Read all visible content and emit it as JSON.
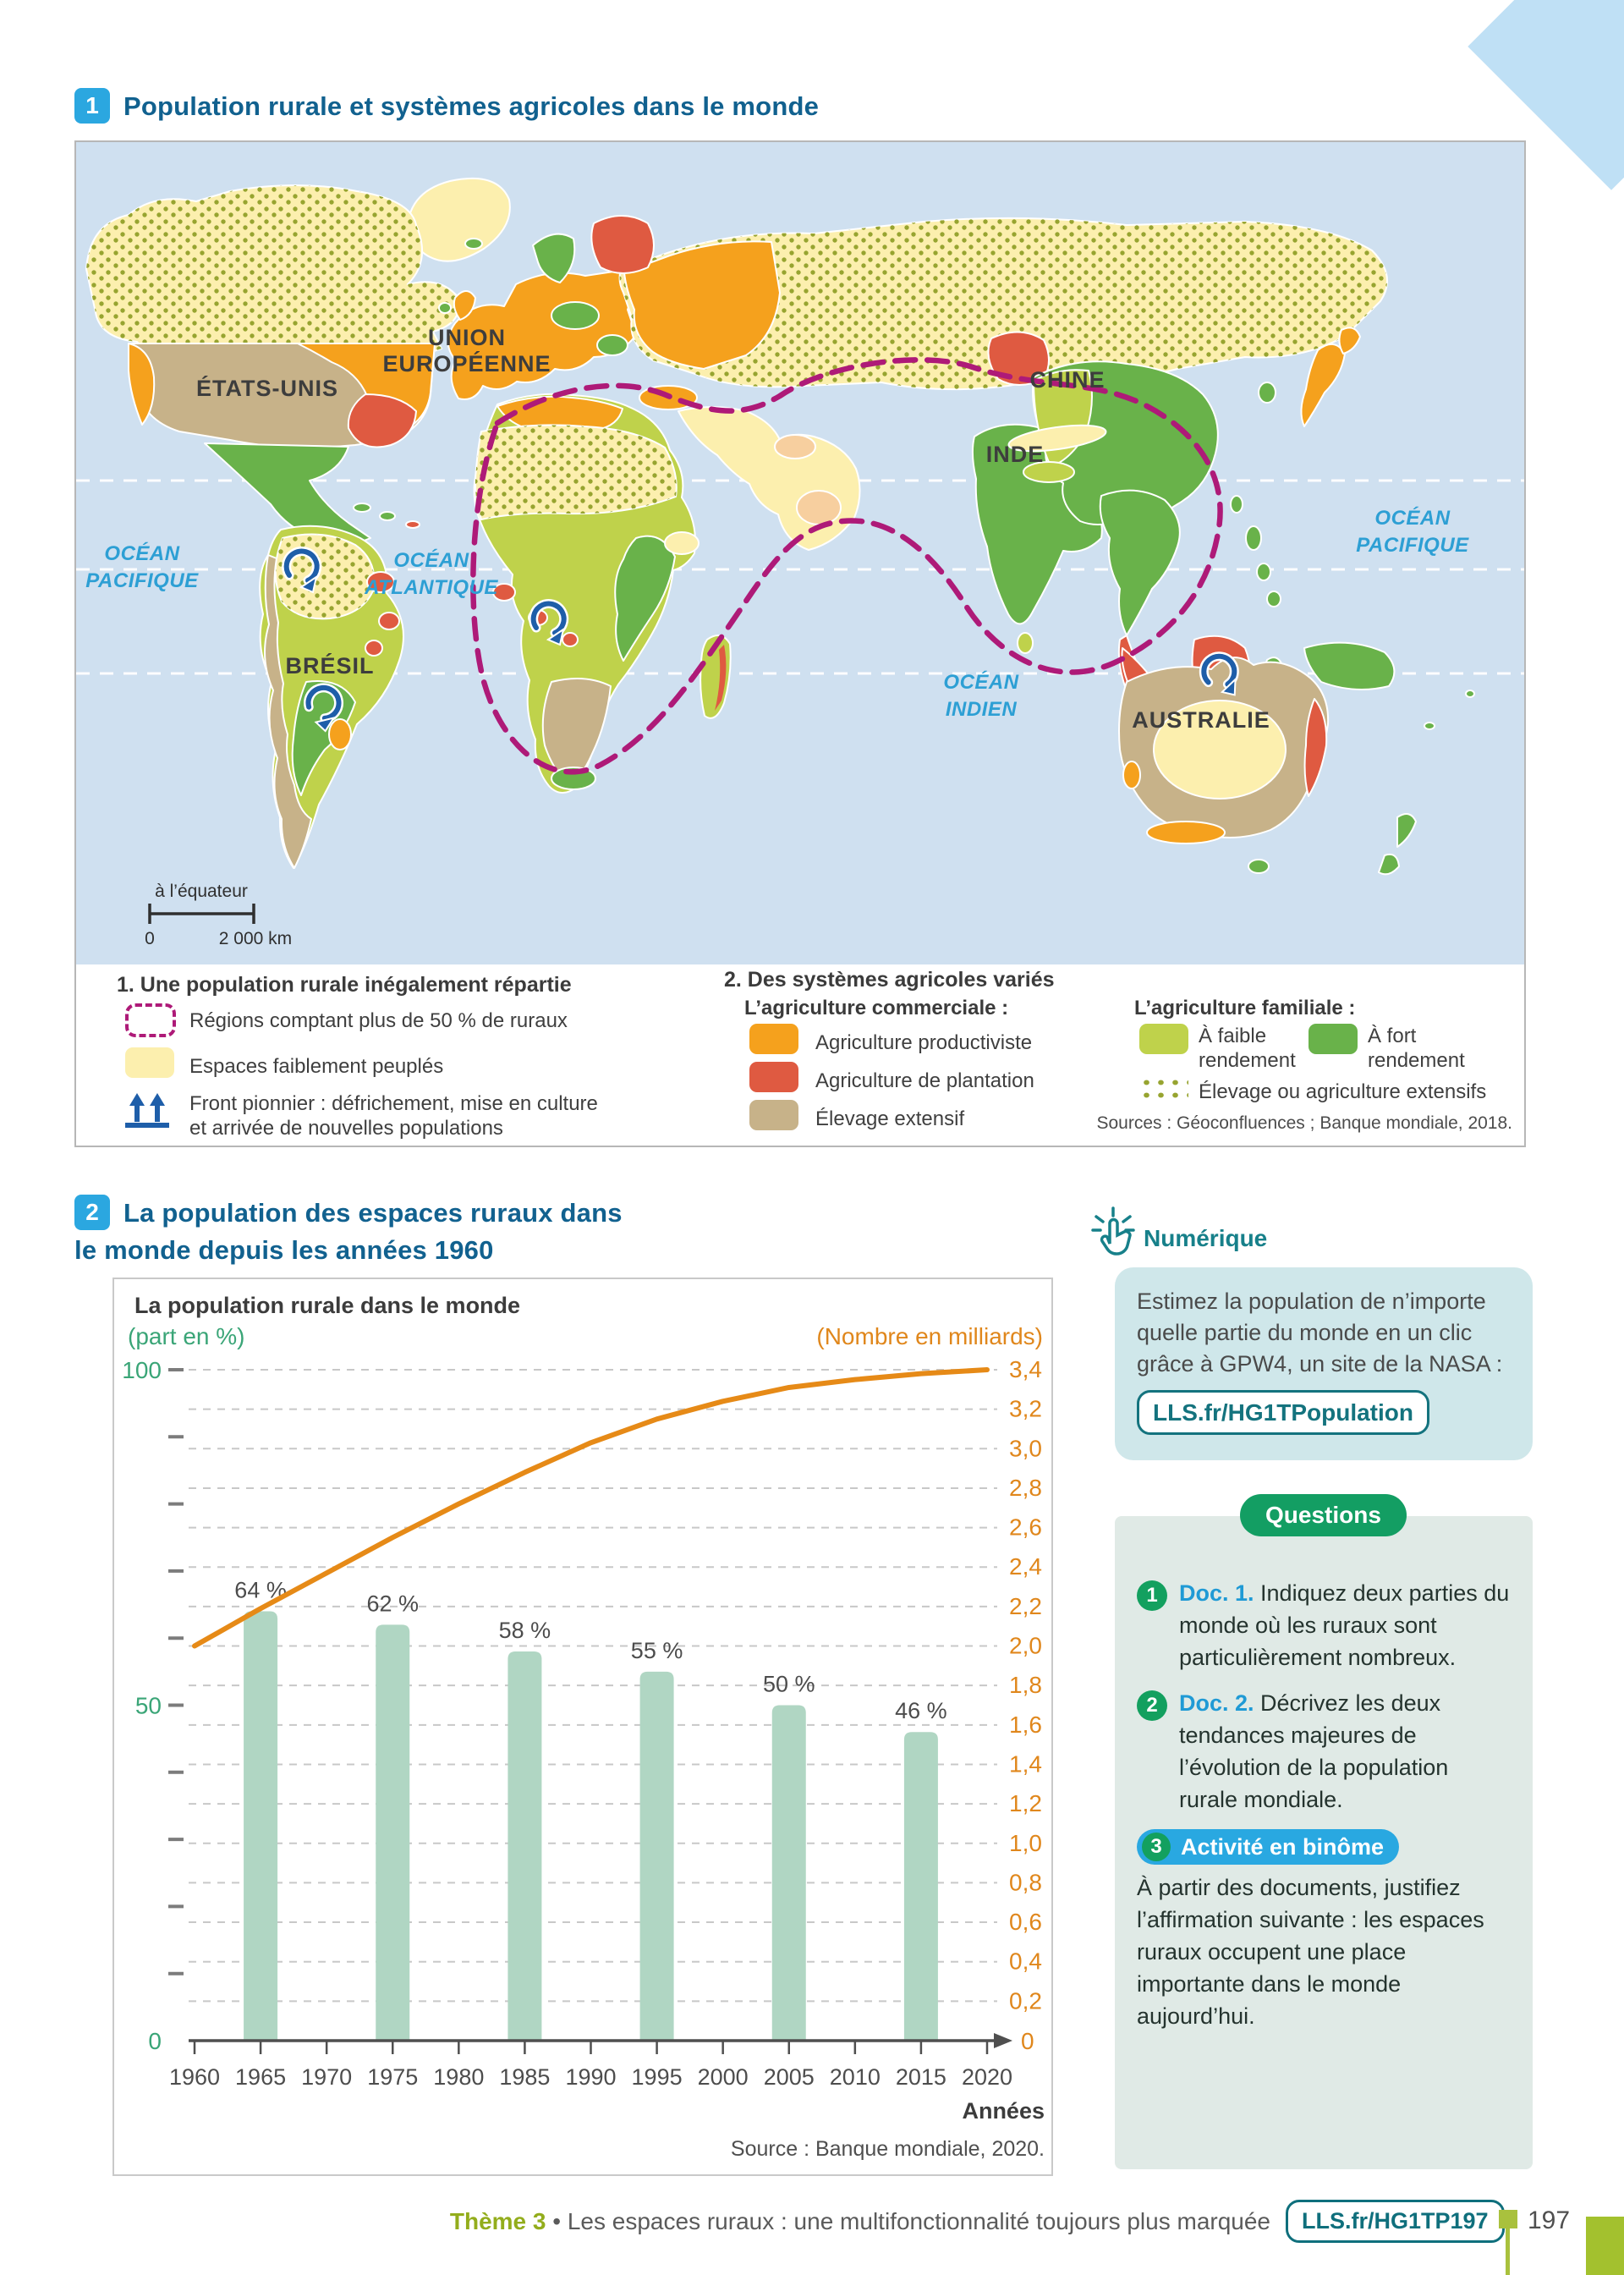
{
  "doc1": {
    "badge": "1",
    "title": "Population rurale et systèmes agricoles dans le monde",
    "map": {
      "labels": {
        "usa": "ÉTATS-UNIS",
        "ue1": "UNION",
        "ue2": "EUROPÉENNE",
        "chine": "CHINE",
        "inde": "INDE",
        "bresil": "BRÉSIL",
        "australie": "AUSTRALIE",
        "ocean": "OCÉAN",
        "atlantique": "ATLANTIQUE",
        "pacifique": "PACIFIQUE",
        "indien": "INDIEN"
      },
      "scale": {
        "caption": "à l’équateur",
        "start": "0",
        "end": "2 000 km"
      }
    },
    "legend": {
      "col1": {
        "title": "1. Une population rurale inégalement répartie",
        "item1": "Régions comptant plus de 50 % de ruraux",
        "item2": "Espaces faiblement peuplés",
        "item3a": "Front pionnier : défrichement, mise en culture",
        "item3b": "et arrivée de nouvelles populations"
      },
      "col2": {
        "title": "2. Des systèmes agricoles variés",
        "subtitle": "L’agriculture commerciale :",
        "item1": "Agriculture productiviste",
        "item2": "Agriculture de plantation",
        "item3": "Élevage extensif"
      },
      "col3": {
        "subtitle": "L’agriculture familiale :",
        "item1a": "À faible",
        "item1b": "rendement",
        "item2a": "À fort",
        "item2b": "rendement",
        "item3": "Élevage ou agriculture extensifs",
        "sources": "Sources : Géoconfluences ; Banque mondiale, 2018."
      },
      "colors": {
        "regions_50_ruraux_outline": "#ae1a78",
        "espaces_faiblement_peuples": "#fcefae",
        "agriculture_productiviste": "#f5a11d",
        "agriculture_plantation": "#df5a41",
        "elevage_extensif": "#c7b289",
        "faible_rendement": "#bfd24b",
        "fort_rendement": "#69b24a",
        "front_pionnier": "#1e5ea9"
      }
    }
  },
  "doc2": {
    "badge": "2",
    "title1": "La population des espaces ruraux dans",
    "title2": "le monde depuis les années 1960"
  },
  "chart_data": {
    "type": "bar+line",
    "title": "La population rurale dans le monde",
    "left_axis": {
      "label": "(part en %)",
      "min": 0,
      "max": 100,
      "minor_step": 10,
      "labels": [
        {
          "v": 100,
          "t": "100"
        },
        {
          "v": 50,
          "t": "50"
        },
        {
          "v": 0,
          "t": "0"
        }
      ]
    },
    "right_axis": {
      "label": "(Nombre en milliards)",
      "min": 0,
      "max": 3.4,
      "step": 0.2,
      "zero_label": "0"
    },
    "x_ticks": [
      1960,
      1965,
      1970,
      1975,
      1980,
      1985,
      1990,
      1995,
      2000,
      2005,
      2010,
      2015,
      2020
    ],
    "bars": {
      "years": [
        1965,
        1975,
        1985,
        1995,
        2005,
        2015
      ],
      "values": [
        64,
        62,
        58,
        55,
        50,
        46
      ],
      "labels": [
        "64 %",
        "62 %",
        "58 %",
        "55 %",
        "50 %",
        "46 %"
      ]
    },
    "line": {
      "name": "Population rurale (milliards)",
      "years": [
        1960,
        1965,
        1970,
        1975,
        1980,
        1985,
        1990,
        1995,
        2000,
        2005,
        2010,
        2015,
        2020
      ],
      "values": [
        2.0,
        2.19,
        2.37,
        2.55,
        2.72,
        2.88,
        3.03,
        3.15,
        3.24,
        3.31,
        3.35,
        3.38,
        3.4
      ]
    },
    "xlabel": "Années",
    "source": "Source : Banque mondiale, 2020.",
    "grid": "dashed-horizontal",
    "colors": {
      "bar": "#b0d6c3",
      "line": "#e68a17",
      "left_axis": "#3aa577",
      "right_axis": "#e0871c"
    }
  },
  "numerique": {
    "heading": "Numérique",
    "body": "Estimez la population de n’importe quelle partie du monde en un clic grâce à GPW4, un site de la NASA :",
    "button": "LLS.fr/HG1TPopulation"
  },
  "questions": {
    "heading": "Questions",
    "q1": {
      "num": "1",
      "doc": "Doc. 1.",
      "text": " Indiquez deux parties du monde où les ruraux sont particulièrement nombreux."
    },
    "q2": {
      "num": "2",
      "doc": "Doc. 2.",
      "text": " Décrivez les deux tendances majeures de l’évolution de la population rurale mondiale."
    },
    "q3": {
      "num": "3",
      "pill": "Activité en binôme",
      "text": "À partir des documents, justifiez l’affirmation suivante : les espaces ruraux occupent une place importante dans le monde aujourd’hui."
    }
  },
  "footer": {
    "theme": "Thème 3",
    "sep": " • ",
    "text": "Les espaces ruraux : une multifonctionnalité toujours plus marquée ",
    "link": "LLS.fr/HG1TP197",
    "page": "197"
  }
}
